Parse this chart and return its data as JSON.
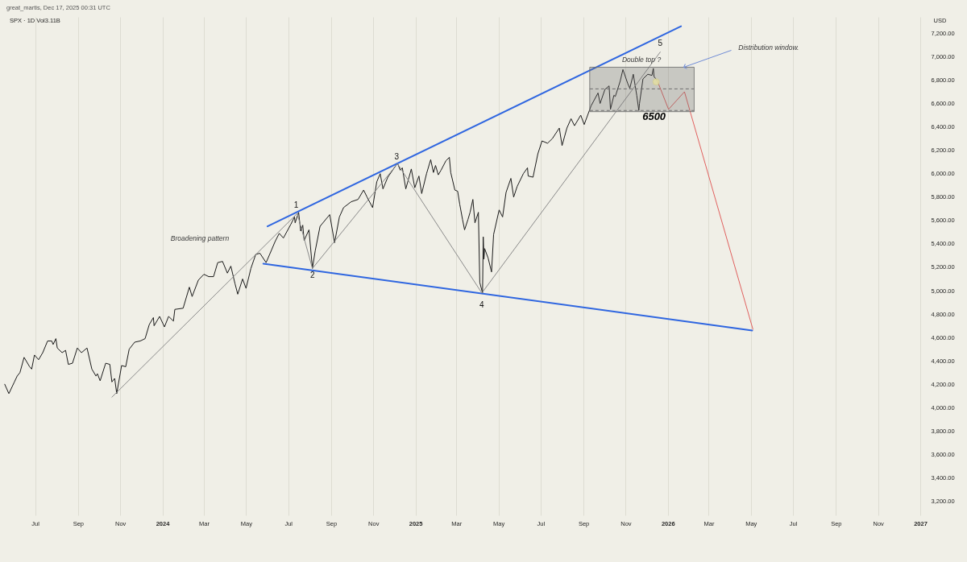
{
  "chart_data": {
    "type": "line",
    "title": "SPX · 1D Vol3.11B",
    "subtitle": "great_martis, Dec 17, 2025 00:31 UTC",
    "ylabel": "USD",
    "x": [
      "2023-05-18",
      "2023-05-24",
      "2023-06-01",
      "2023-06-05",
      "2023-06-09",
      "2023-06-15",
      "2023-06-23",
      "2023-06-26",
      "2023-06-30",
      "2023-07-06",
      "2023-07-12",
      "2023-07-19",
      "2023-07-25",
      "2023-07-27",
      "2023-07-31",
      "2023-08-02",
      "2023-08-09",
      "2023-08-14",
      "2023-08-18",
      "2023-08-24",
      "2023-08-31",
      "2023-09-06",
      "2023-09-14",
      "2023-09-21",
      "2023-09-27",
      "2023-09-29",
      "2023-10-03",
      "2023-10-11",
      "2023-10-17",
      "2023-10-20",
      "2023-10-24",
      "2023-10-27",
      "2023-11-03",
      "2023-11-09",
      "2023-11-14",
      "2023-11-22",
      "2023-11-30",
      "2023-12-07",
      "2023-12-13",
      "2023-12-19",
      "2023-12-20",
      "2023-12-28",
      "2024-01-04",
      "2024-01-10",
      "2024-01-17",
      "2024-01-19",
      "2024-01-31",
      "2024-02-09",
      "2024-02-13",
      "2024-02-22",
      "2024-03-01",
      "2024-03-08",
      "2024-03-15",
      "2024-03-21",
      "2024-03-28",
      "2024-04-04",
      "2024-04-09",
      "2024-04-15",
      "2024-04-19",
      "2024-04-26",
      "2024-05-01",
      "2024-05-08",
      "2024-05-15",
      "2024-05-21",
      "2024-05-30",
      "2024-06-07",
      "2024-06-12",
      "2024-06-18",
      "2024-06-24",
      "2024-07-05",
      "2024-07-10",
      "2024-07-11",
      "2024-07-16",
      "2024-07-19",
      "2024-07-22",
      "2024-07-24",
      "2024-07-31",
      "2024-08-05",
      "2024-08-09",
      "2024-08-16",
      "2024-08-30",
      "2024-09-06",
      "2024-09-13",
      "2024-09-19",
      "2024-09-30",
      "2024-10-10",
      "2024-10-18",
      "2024-10-23",
      "2024-10-31",
      "2024-11-06",
      "2024-11-11",
      "2024-11-15",
      "2024-11-22",
      "2024-11-29",
      "2024-12-06",
      "2024-12-10",
      "2024-12-13",
      "2024-12-18",
      "2024-12-26",
      "2024-12-31",
      "2025-01-06",
      "2025-01-10",
      "2025-01-17",
      "2025-01-23",
      "2025-01-27",
      "2025-01-30",
      "2025-02-03",
      "2025-02-07",
      "2025-02-14",
      "2025-02-19",
      "2025-02-21",
      "2025-02-27",
      "2025-03-03",
      "2025-03-06",
      "2025-03-10",
      "2025-03-13",
      "2025-03-18",
      "2025-03-21",
      "2025-03-25",
      "2025-03-28",
      "2025-04-02",
      "2025-04-04",
      "2025-04-08",
      "2025-04-09",
      "2025-04-10",
      "2025-04-11",
      "2025-04-16",
      "2025-04-21",
      "2025-04-24",
      "2025-05-02",
      "2025-05-07",
      "2025-05-12",
      "2025-05-19",
      "2025-05-23",
      "2025-05-28",
      "2025-06-06",
      "2025-06-12",
      "2025-06-13",
      "2025-06-20",
      "2025-06-27",
      "2025-07-03",
      "2025-07-11",
      "2025-07-18",
      "2025-07-28",
      "2025-08-01",
      "2025-08-08",
      "2025-08-14",
      "2025-08-19",
      "2025-08-28",
      "2025-09-02",
      "2025-09-12",
      "2025-09-22",
      "2025-09-25",
      "2025-10-02",
      "2025-10-08",
      "2025-10-10",
      "2025-10-15",
      "2025-10-17",
      "2025-10-24",
      "2025-10-28",
      "2025-11-04",
      "2025-11-07",
      "2025-11-12",
      "2025-11-17",
      "2025-11-20",
      "2025-11-21",
      "2025-11-26",
      "2025-12-03",
      "2025-12-09",
      "2025-12-11",
      "2025-12-12",
      "2025-12-16"
    ],
    "series": [
      {
        "color": "#1a1a1a",
        "values": [
          4200,
          4120,
          4220,
          4270,
          4300,
          4430,
          4350,
          4330,
          4450,
          4410,
          4470,
          4570,
          4570,
          4540,
          4590,
          4510,
          4470,
          4490,
          4370,
          4380,
          4510,
          4470,
          4510,
          4330,
          4270,
          4290,
          4230,
          4380,
          4370,
          4220,
          4250,
          4120,
          4360,
          4350,
          4500,
          4560,
          4570,
          4590,
          4710,
          4770,
          4700,
          4780,
          4690,
          4780,
          4740,
          4840,
          4850,
          5030,
          4950,
          5090,
          5140,
          5120,
          5120,
          5240,
          5250,
          5150,
          5210,
          5060,
          4970,
          5100,
          5020,
          5190,
          5310,
          5320,
          5240,
          5350,
          5420,
          5490,
          5450,
          5570,
          5630,
          5580,
          5670,
          5510,
          5560,
          5430,
          5520,
          5190,
          5340,
          5550,
          5650,
          5410,
          5630,
          5710,
          5760,
          5780,
          5860,
          5800,
          5710,
          5930,
          6000,
          5870,
          5970,
          6030,
          6090,
          6030,
          6050,
          5870,
          6040,
          5880,
          5980,
          5830,
          6000,
          6120,
          6010,
          6070,
          5990,
          6030,
          6110,
          6140,
          6010,
          5860,
          5850,
          5740,
          5610,
          5520,
          5610,
          5670,
          5780,
          5580,
          5670,
          5070,
          4980,
          5460,
          5270,
          5360,
          5280,
          5160,
          5480,
          5690,
          5630,
          5840,
          5960,
          5800,
          5890,
          6000,
          6050,
          5980,
          5970,
          6170,
          6280,
          6260,
          6300,
          6390,
          6240,
          6390,
          6470,
          6410,
          6500,
          6420,
          6580,
          6690,
          6600,
          6720,
          6750,
          6550,
          6670,
          6660,
          6790,
          6890,
          6770,
          6730,
          6850,
          6670,
          6540,
          6600,
          6810,
          6850,
          6840,
          6900,
          6830,
          6800
        ]
      },
      {
        "color": "#6e6e6e",
        "line_style": "dashed",
        "x": [
          "2025-09-10",
          "2025-11-24",
          "2026-02-08"
        ],
        "values": [
          6725,
          6725,
          6725
        ],
        "lower": [
          6530,
          6530,
          6530
        ],
        "upper": [
          6910,
          6910,
          6910
        ]
      },
      {
        "color": "#6e6e6e",
        "line_style": "dashed",
        "x": [
          "2025-09-10",
          "2026-02-08"
        ],
        "values": [
          6540,
          6540
        ]
      },
      {
        "color": "#2f66e0",
        "x": [
          "2024-06-01",
          "2026-01-20"
        ],
        "values": [
          5550,
          7260
        ]
      },
      {
        "color": "#2f66e0",
        "x": [
          "2024-05-26",
          "2026-05-03"
        ],
        "values": [
          5230,
          4660
        ]
      },
      {
        "color": "#8a8a8a",
        "x": [
          "2023-10-20",
          "2024-07-14",
          "2024-08-05",
          "2024-12-06",
          "2025-04-07",
          "2025-12-21"
        ],
        "values": [
          4090,
          5660,
          5190,
          6085,
          4980,
          7040
        ]
      },
      {
        "color": "#e0605e",
        "x": [
          "2025-12-17",
          "2026-01-02",
          "2026-01-25",
          "2026-05-04"
        ],
        "values": [
          6790,
          6550,
          6700,
          4670
        ]
      },
      {
        "type": "scatter",
        "color": "#e4dfa2",
        "x": [
          "2025-12-15"
        ],
        "values": [
          6785
        ]
      }
    ],
    "xlim": [
      "2023-05-17",
      "2027-01-01"
    ],
    "ylim": [
      3080,
      7340
    ],
    "xticks": [
      {
        "value": "2023-07-01",
        "label": "Jul"
      },
      {
        "value": "2023-09-01",
        "label": "Sep"
      },
      {
        "value": "2023-11-01",
        "label": "Nov"
      },
      {
        "value": "2024-01-01",
        "label": "2024"
      },
      {
        "value": "2024-03-01",
        "label": "Mar"
      },
      {
        "value": "2024-05-01",
        "label": "May"
      },
      {
        "value": "2024-07-01",
        "label": "Jul"
      },
      {
        "value": "2024-09-01",
        "label": "Sep"
      },
      {
        "value": "2024-11-01",
        "label": "Nov"
      },
      {
        "value": "2025-01-01",
        "label": "2025"
      },
      {
        "value": "2025-03-01",
        "label": "Mar"
      },
      {
        "value": "2025-05-01",
        "label": "May"
      },
      {
        "value": "2025-07-01",
        "label": "Jul"
      },
      {
        "value": "2025-09-01",
        "label": "Sep"
      },
      {
        "value": "2025-11-01",
        "label": "Nov"
      },
      {
        "value": "2026-01-01",
        "label": "2026"
      },
      {
        "value": "2026-03-01",
        "label": "Mar"
      },
      {
        "value": "2026-05-01",
        "label": "May"
      },
      {
        "value": "2026-07-01",
        "label": "Jul"
      },
      {
        "value": "2026-09-01",
        "label": "Sep"
      },
      {
        "value": "2026-11-01",
        "label": "Nov"
      },
      {
        "value": "2027-01-01",
        "label": "2027"
      }
    ],
    "yticks": [
      {
        "value": 3200,
        "label": "3,200.00"
      },
      {
        "value": 3400,
        "label": "3,400.00"
      },
      {
        "value": 3600,
        "label": "3,600.00"
      },
      {
        "value": 3800,
        "label": "3,800.00"
      },
      {
        "value": 4000,
        "label": "4,000.00"
      },
      {
        "value": 4200,
        "label": "4,200.00"
      },
      {
        "value": 4400,
        "label": "4,400.00"
      },
      {
        "value": 4600,
        "label": "4,600.00"
      },
      {
        "value": 4800,
        "label": "4,800.00"
      },
      {
        "value": 5000,
        "label": "5,000.00"
      },
      {
        "value": 5200,
        "label": "5,200.00"
      },
      {
        "value": 5400,
        "label": "5,400.00"
      },
      {
        "value": 5600,
        "label": "5,600.00"
      },
      {
        "value": 5800,
        "label": "5,800.00"
      },
      {
        "value": 6000,
        "label": "6,000.00"
      },
      {
        "value": 6200,
        "label": "6,200.00"
      },
      {
        "value": 6400,
        "label": "6,400.00"
      },
      {
        "value": 6600,
        "label": "6,600.00"
      },
      {
        "value": 6800,
        "label": "6,800.00"
      },
      {
        "value": 7000,
        "label": "7,000.00"
      },
      {
        "value": 7200,
        "label": "7,200.00"
      }
    ],
    "grid": "x",
    "annotations": [
      "Broadening pattern",
      {
        "text": "1",
        "x": "2024-07-16",
        "y": 5670
      },
      {
        "text": "2",
        "x": "2024-08-05",
        "y": 5190
      },
      {
        "text": "3",
        "x": "2024-12-06",
        "y": 6090
      },
      {
        "text": "4",
        "x": "2025-04-08",
        "y": 4980
      },
      {
        "text": "5",
        "x": "2025-12-21",
        "y": 7040
      },
      "Double top ?",
      {
        "text": "6500",
        "x": "2025-12-12",
        "y": 6530
      },
      {
        "text": "Distribution window.",
        "x": "2026-01-24",
        "y": 6910
      }
    ]
  }
}
